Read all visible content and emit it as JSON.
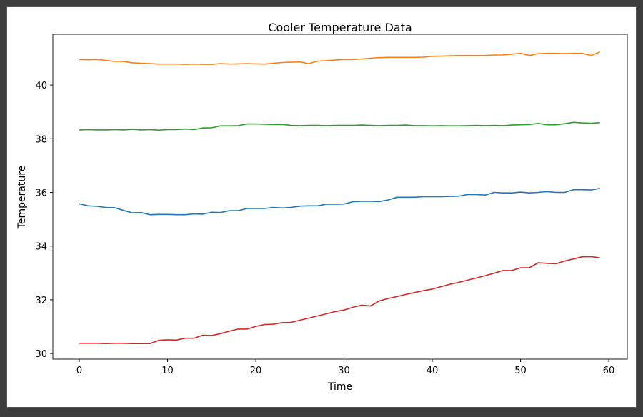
{
  "chart_data": {
    "type": "line",
    "title": "Cooler Temperature Data",
    "xlabel": "Time",
    "ylabel": "Temperature",
    "xlim": [
      -3,
      62.1
    ],
    "ylim": [
      29.79,
      41.89
    ],
    "xticks": [
      0,
      10,
      20,
      30,
      40,
      50,
      60
    ],
    "yticks": [
      30,
      32,
      34,
      36,
      38,
      40
    ],
    "grid": false,
    "x": [
      0,
      1,
      2,
      3,
      4,
      5,
      6,
      7,
      8,
      9,
      10,
      11,
      12,
      13,
      14,
      15,
      16,
      17,
      18,
      19,
      20,
      21,
      22,
      23,
      24,
      25,
      26,
      27,
      28,
      29,
      30,
      31,
      32,
      33,
      34,
      35,
      36,
      37,
      38,
      39,
      40,
      41,
      42,
      43,
      44,
      45,
      46,
      47,
      48,
      49,
      50,
      51,
      52,
      53,
      54,
      55,
      56,
      57,
      58,
      59
    ],
    "series": [
      {
        "color": "#1f77b4",
        "values": [
          35.58,
          35.5,
          35.48,
          35.44,
          35.43,
          35.33,
          35.24,
          35.25,
          35.17,
          35.18,
          35.18,
          35.17,
          35.17,
          35.2,
          35.19,
          35.26,
          35.25,
          35.32,
          35.32,
          35.4,
          35.4,
          35.4,
          35.44,
          35.42,
          35.44,
          35.49,
          35.5,
          35.5,
          35.56,
          35.56,
          35.57,
          35.65,
          35.67,
          35.67,
          35.66,
          35.72,
          35.82,
          35.82,
          35.82,
          35.84,
          35.84,
          35.84,
          35.85,
          35.86,
          35.92,
          35.92,
          35.9,
          36.0,
          35.98,
          35.98,
          36.01,
          35.98,
          36.0,
          36.03,
          36.0,
          36.0,
          36.1,
          36.1,
          36.09,
          36.15
        ]
      },
      {
        "color": "#ff7f0e",
        "values": [
          40.95,
          40.94,
          40.95,
          40.92,
          40.88,
          40.88,
          40.83,
          40.81,
          40.8,
          40.78,
          40.78,
          40.78,
          40.77,
          40.78,
          40.77,
          40.77,
          40.8,
          40.78,
          40.79,
          40.8,
          40.79,
          40.78,
          40.81,
          40.84,
          40.85,
          40.86,
          40.8,
          40.89,
          40.91,
          40.93,
          40.95,
          40.95,
          40.97,
          41.0,
          41.02,
          41.03,
          41.03,
          41.03,
          41.03,
          41.04,
          41.07,
          41.08,
          41.09,
          41.1,
          41.1,
          41.1,
          41.1,
          41.12,
          41.12,
          41.15,
          41.18,
          41.1,
          41.17,
          41.18,
          41.18,
          41.17,
          41.18,
          41.18,
          41.1,
          41.23
        ]
      },
      {
        "color": "#2ca02c",
        "values": [
          38.33,
          38.34,
          38.33,
          38.33,
          38.34,
          38.33,
          38.35,
          38.33,
          38.34,
          38.32,
          38.34,
          38.34,
          38.36,
          38.34,
          38.4,
          38.41,
          38.48,
          38.48,
          38.49,
          38.55,
          38.55,
          38.54,
          38.53,
          38.53,
          38.5,
          38.49,
          38.5,
          38.5,
          38.49,
          38.5,
          38.5,
          38.5,
          38.51,
          38.5,
          38.49,
          38.5,
          38.5,
          38.51,
          38.49,
          38.49,
          38.48,
          38.49,
          38.48,
          38.48,
          38.49,
          38.5,
          38.49,
          38.5,
          38.49,
          38.51,
          38.52,
          38.53,
          38.57,
          38.52,
          38.52,
          38.56,
          38.61,
          38.59,
          38.58,
          38.6
        ]
      },
      {
        "color": "#d62728",
        "values": [
          30.38,
          30.38,
          30.38,
          30.37,
          30.38,
          30.38,
          30.37,
          30.37,
          30.37,
          30.49,
          30.51,
          30.5,
          30.57,
          30.57,
          30.68,
          30.67,
          30.74,
          30.83,
          30.91,
          30.91,
          31.01,
          31.08,
          31.09,
          31.15,
          31.16,
          31.24,
          31.32,
          31.4,
          31.48,
          31.56,
          31.62,
          31.72,
          31.8,
          31.77,
          31.96,
          32.05,
          32.12,
          32.2,
          32.27,
          32.34,
          32.4,
          32.49,
          32.58,
          32.65,
          32.73,
          32.81,
          32.9,
          32.99,
          33.09,
          33.09,
          33.19,
          33.19,
          33.38,
          33.36,
          33.34,
          33.44,
          33.52,
          33.6,
          33.61,
          33.56
        ]
      }
    ]
  }
}
